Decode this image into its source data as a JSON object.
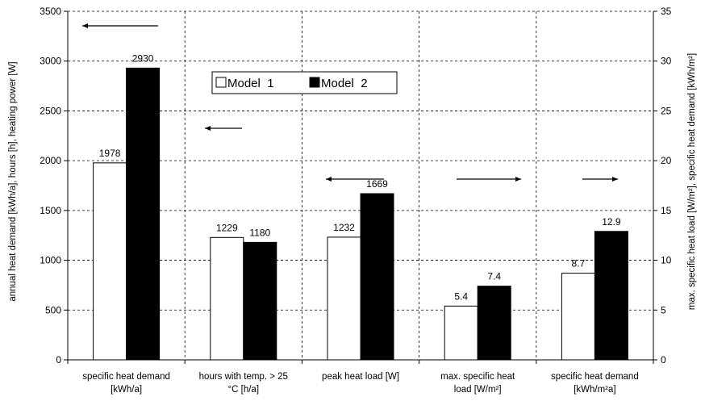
{
  "chart_data": {
    "type": "bar",
    "categories": [
      [
        "specific heat demand",
        "[kWh/a]"
      ],
      [
        "hours with temp. > 25",
        "°C [h/a]"
      ],
      [
        "peak heat load [W]"
      ],
      [
        "max. specific heat",
        "load [W/m²]"
      ],
      [
        "specific heat demand",
        "[kWh/m²a]"
      ]
    ],
    "category_axis": [
      "left",
      "left",
      "left",
      "right",
      "right"
    ],
    "series": [
      {
        "name": "Model  1",
        "values": [
          1978,
          1229,
          1232,
          5.4,
          8.7
        ],
        "labels": [
          "1978",
          "1229",
          "1232",
          "5.4",
          "8.7"
        ],
        "color": "#ffffff"
      },
      {
        "name": "Model  2",
        "values": [
          2930,
          1180,
          1669,
          7.4,
          12.9
        ],
        "labels": [
          "2930",
          "1180",
          "1669",
          "7.4",
          "12.9"
        ],
        "color": "#000000"
      }
    ],
    "arrows": [
      "left",
      "left",
      "left",
      "right",
      "right"
    ],
    "y_left": {
      "label": "annual heat demand [kWh/a], hours [h], heating power [W]",
      "lim": [
        0,
        3500
      ],
      "ticks": [
        0,
        500,
        1000,
        1500,
        2000,
        2500,
        3000,
        3500
      ]
    },
    "y_right": {
      "label": "max. specific heat load [W/m²], specific heat demand [kWh/m²]",
      "lim": [
        0,
        35
      ],
      "ticks": [
        0,
        5,
        10,
        15,
        20,
        25,
        30,
        35
      ]
    },
    "grid": true,
    "legend_position": "top-center"
  }
}
